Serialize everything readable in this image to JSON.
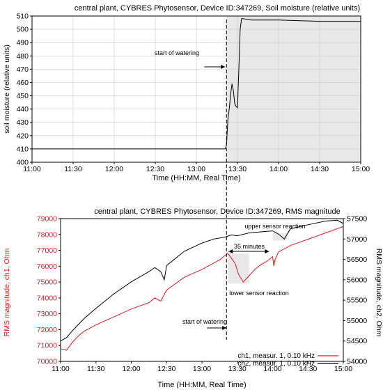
{
  "colors": {
    "ch1": "#e8141b",
    "ch2": "#000000",
    "shade": "#e8e8e8",
    "marker": "#000000"
  },
  "chart_data": [
    {
      "type": "line",
      "title": "central plant, CYBRES Phytosensor, Device ID:347269, Soil moisture (relative units)",
      "xlabel": "Time (HH:MM, Real Time)",
      "ylabel": "soil moisture (relative units)",
      "xlim": [
        "11:00",
        "15:00"
      ],
      "ylim": [
        400,
        510
      ],
      "x_ticks": [
        "11:00",
        "11:30",
        "12:00",
        "12:30",
        "13:00",
        "13:30",
        "14:00",
        "14:30",
        "15:00"
      ],
      "y_ticks": [
        400,
        410,
        420,
        430,
        440,
        450,
        460,
        470,
        480,
        490,
        500,
        510
      ],
      "grid": true,
      "shaded_region": [
        "13:22",
        "15:00"
      ],
      "annotations": [
        {
          "text": "start of watering",
          "x": "13:22",
          "y": 477
        }
      ],
      "series": [
        {
          "x": [
            "11:00",
            "11:30",
            "12:00",
            "12:30",
            "13:00",
            "13:20",
            "13:21",
            "13:22",
            "13:23",
            "13:24",
            "13:25",
            "13:26",
            "13:27",
            "13:28",
            "13:29",
            "13:30",
            "13:31",
            "13:32",
            "13:33",
            "13:34",
            "13:40",
            "14:00",
            "14:30",
            "15:00"
          ],
          "y": [
            410,
            410,
            410,
            410,
            410,
            410,
            410,
            413,
            432,
            440,
            451,
            459,
            454,
            444,
            442,
            441,
            470,
            500,
            508,
            508,
            507,
            507,
            506,
            506
          ]
        }
      ]
    },
    {
      "type": "line",
      "title": "central plant, CYBRES Phytosensor, Device ID:347269, RMS magnitude",
      "xlabel": "Time (HH:MM, Real Time)",
      "ylabel_left": "RMS magnitude, ch1, Ohm",
      "ylabel_right": "RMS magnitude, ch2, Ohm",
      "xlim": [
        "11:00",
        "15:00"
      ],
      "ylim_left": [
        70000,
        79000
      ],
      "ylim_right": [
        54000,
        57500
      ],
      "x_ticks": [
        "11:00",
        "11:30",
        "12:00",
        "12:30",
        "13:00",
        "13:30",
        "14:00",
        "14:30",
        "15:00"
      ],
      "y_ticks_left": [
        70000,
        71000,
        72000,
        73000,
        74000,
        75000,
        76000,
        77000,
        78000,
        79000
      ],
      "y_ticks_right": [
        54000,
        54500,
        55000,
        55500,
        56000,
        56500,
        57000,
        57500
      ],
      "grid": false,
      "legend_position": "bottom-right",
      "shaded_regions": [
        {
          "axis": "left",
          "x": [
            "13:22",
            "13:40"
          ],
          "y": [
            74900,
            76800
          ]
        },
        {
          "axis": "right",
          "x": [
            "14:00",
            "14:12"
          ],
          "y": [
            56960,
            57150
          ]
        }
      ],
      "annotations": [
        {
          "text": "start of watering",
          "x": "13:22",
          "y_left": 72200
        },
        {
          "text": "35 minutes",
          "x": "13:41",
          "y_left": 77600
        },
        {
          "text": "upper sensor reaction",
          "x": "14:00",
          "y_left": 78600
        },
        {
          "text": "lower sensor reaction",
          "x": "13:47",
          "y_left": 74750
        }
      ],
      "series": [
        {
          "name": "ch1, measur. 1, 0.10 kHz",
          "axis": "left",
          "x": [
            "11:00",
            "11:05",
            "11:10",
            "11:15",
            "11:20",
            "11:30",
            "11:45",
            "12:00",
            "12:15",
            "12:20",
            "12:25",
            "12:30",
            "12:45",
            "13:00",
            "13:10",
            "13:15",
            "13:20",
            "13:22",
            "13:25",
            "13:28",
            "13:31",
            "13:35",
            "13:40",
            "13:45",
            "13:50",
            "13:55",
            "14:00",
            "14:01",
            "14:02",
            "14:05",
            "14:15",
            "14:30",
            "14:45",
            "15:00"
          ],
          "y": [
            70800,
            70700,
            71200,
            71600,
            71900,
            72300,
            72800,
            73300,
            73700,
            74000,
            73800,
            74500,
            75300,
            75800,
            76200,
            76400,
            76700,
            76800,
            76500,
            76200,
            75500,
            75000,
            75400,
            75800,
            76100,
            76300,
            76600,
            76000,
            76400,
            76900,
            77300,
            77700,
            78100,
            78500
          ]
        },
        {
          "name": "ch2, measur. 1, 0.10 kHz",
          "axis": "right",
          "x": [
            "11:00",
            "11:05",
            "11:10",
            "11:20",
            "11:30",
            "11:45",
            "12:00",
            "12:15",
            "12:20",
            "12:25",
            "12:28",
            "12:30",
            "12:45",
            "13:00",
            "13:10",
            "13:20",
            "13:25",
            "13:30",
            "13:40",
            "14:00",
            "14:05",
            "14:10",
            "14:15",
            "14:30",
            "14:45",
            "14:55",
            "15:00"
          ],
          "y": [
            54500,
            54580,
            54750,
            55050,
            55300,
            55650,
            55950,
            56200,
            56300,
            56200,
            56000,
            56350,
            56700,
            56900,
            57000,
            57050,
            57100,
            57080,
            57150,
            57200,
            57120,
            57000,
            57250,
            57350,
            57440,
            57460,
            57380
          ]
        }
      ]
    }
  ]
}
